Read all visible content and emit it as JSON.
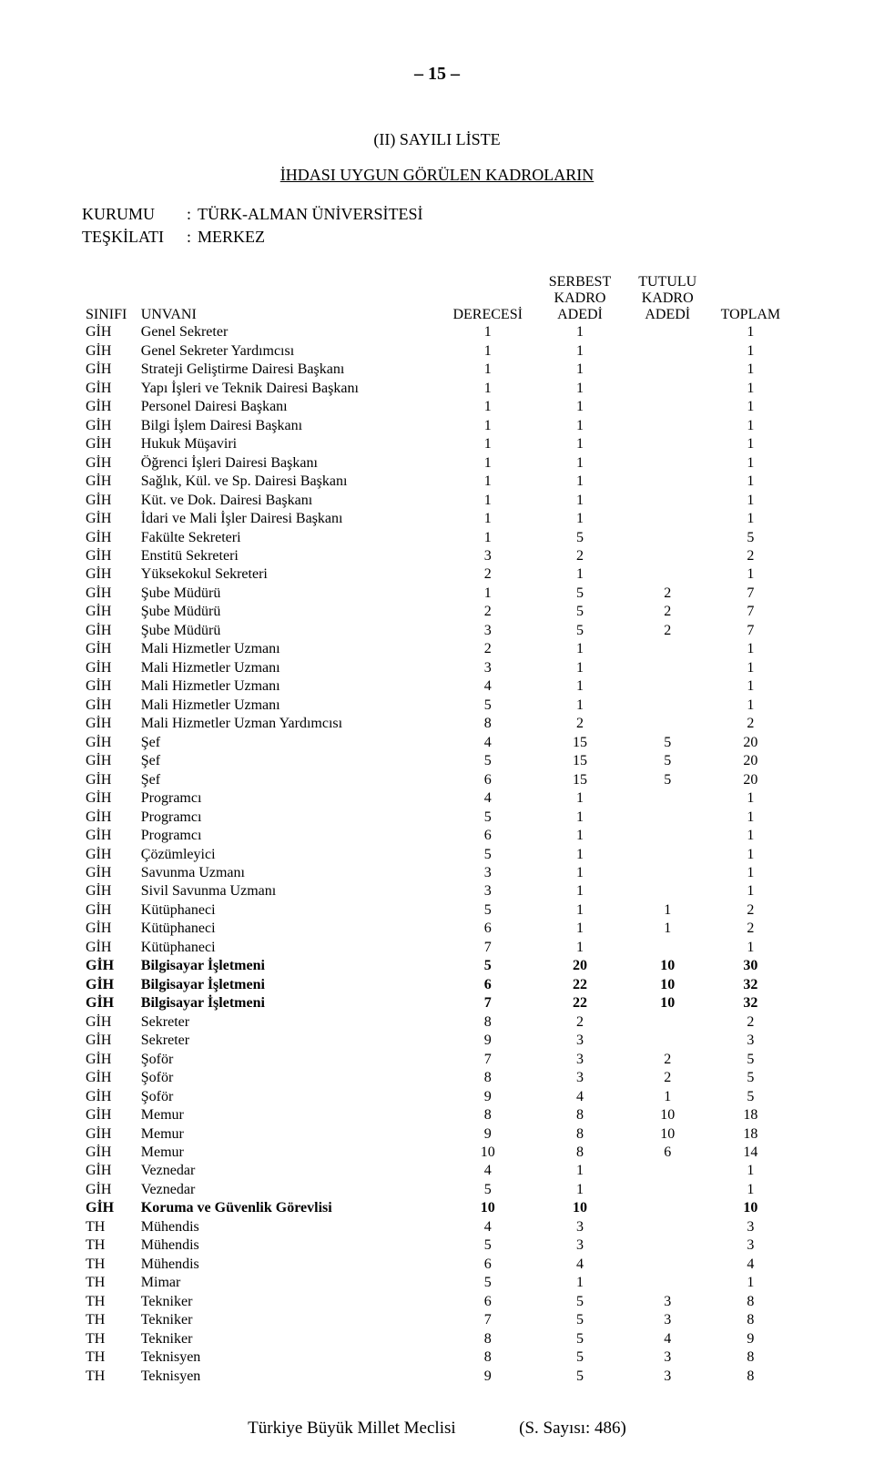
{
  "page_number": "– 15 –",
  "list_title": "(II) SAYILI LİSTE",
  "list_subtitle": "İHDASI UYGUN GÖRÜLEN KADROLARIN",
  "meta": {
    "kurumu_label": "KURUMU",
    "kurumu_value": "TÜRK-ALMAN ÜNİVERSİTESİ",
    "teskilati_label": "TEŞKİLATI",
    "teskilati_value": "MERKEZ"
  },
  "headers": {
    "sinifi": "SINIFI",
    "unvani": "UNVANI",
    "derecesi": "DERECESİ",
    "serbest1": "SERBEST",
    "serbest2": "KADRO",
    "serbest3": "ADEDİ",
    "tutulu1": "TUTULU",
    "tutulu2": "KADRO",
    "tutulu3": "ADEDİ",
    "toplam": "TOPLAM"
  },
  "rows": [
    {
      "s": "GİH",
      "u": "Genel Sekreter",
      "d": "1",
      "sb": "1",
      "t": "",
      "tp": "1",
      "b": false
    },
    {
      "s": "GİH",
      "u": "Genel Sekreter Yardımcısı",
      "d": "1",
      "sb": "1",
      "t": "",
      "tp": "1",
      "b": false
    },
    {
      "s": "GİH",
      "u": "Strateji Geliştirme Dairesi Başkanı",
      "d": "1",
      "sb": "1",
      "t": "",
      "tp": "1",
      "b": false
    },
    {
      "s": "GİH",
      "u": "Yapı İşleri ve Teknik Dairesi Başkanı",
      "d": "1",
      "sb": "1",
      "t": "",
      "tp": "1",
      "b": false
    },
    {
      "s": "GİH",
      "u": "Personel Dairesi Başkanı",
      "d": "1",
      "sb": "1",
      "t": "",
      "tp": "1",
      "b": false
    },
    {
      "s": "GİH",
      "u": "Bilgi İşlem Dairesi Başkanı",
      "d": "1",
      "sb": "1",
      "t": "",
      "tp": "1",
      "b": false
    },
    {
      "s": "GİH",
      "u": "Hukuk Müşaviri",
      "d": "1",
      "sb": "1",
      "t": "",
      "tp": "1",
      "b": false
    },
    {
      "s": "GİH",
      "u": "Öğrenci İşleri Dairesi Başkanı",
      "d": "1",
      "sb": "1",
      "t": "",
      "tp": "1",
      "b": false
    },
    {
      "s": "GİH",
      "u": "Sağlık, Kül. ve Sp. Dairesi Başkanı",
      "d": "1",
      "sb": "1",
      "t": "",
      "tp": "1",
      "b": false
    },
    {
      "s": "GİH",
      "u": "Küt. ve Dok. Dairesi Başkanı",
      "d": "1",
      "sb": "1",
      "t": "",
      "tp": "1",
      "b": false
    },
    {
      "s": "GİH",
      "u": "İdari ve Mali İşler Dairesi Başkanı",
      "d": "1",
      "sb": "1",
      "t": "",
      "tp": "1",
      "b": false
    },
    {
      "s": "GİH",
      "u": "Fakülte Sekreteri",
      "d": "1",
      "sb": "5",
      "t": "",
      "tp": "5",
      "b": false
    },
    {
      "s": "GİH",
      "u": "Enstitü Sekreteri",
      "d": "3",
      "sb": "2",
      "t": "",
      "tp": "2",
      "b": false
    },
    {
      "s": "GİH",
      "u": "Yüksekokul Sekreteri",
      "d": "2",
      "sb": "1",
      "t": "",
      "tp": "1",
      "b": false
    },
    {
      "s": "GİH",
      "u": "Şube Müdürü",
      "d": "1",
      "sb": "5",
      "t": "2",
      "tp": "7",
      "b": false
    },
    {
      "s": "GİH",
      "u": "Şube Müdürü",
      "d": "2",
      "sb": "5",
      "t": "2",
      "tp": "7",
      "b": false
    },
    {
      "s": "GİH",
      "u": "Şube Müdürü",
      "d": "3",
      "sb": "5",
      "t": "2",
      "tp": "7",
      "b": false
    },
    {
      "s": "GİH",
      "u": "Mali Hizmetler Uzmanı",
      "d": "2",
      "sb": "1",
      "t": "",
      "tp": "1",
      "b": false
    },
    {
      "s": "GİH",
      "u": "Mali Hizmetler Uzmanı",
      "d": "3",
      "sb": "1",
      "t": "",
      "tp": "1",
      "b": false
    },
    {
      "s": "GİH",
      "u": "Mali Hizmetler Uzmanı",
      "d": "4",
      "sb": "1",
      "t": "",
      "tp": "1",
      "b": false
    },
    {
      "s": "GİH",
      "u": "Mali Hizmetler Uzmanı",
      "d": "5",
      "sb": "1",
      "t": "",
      "tp": "1",
      "b": false
    },
    {
      "s": "GİH",
      "u": "Mali Hizmetler Uzman Yardımcısı",
      "d": "8",
      "sb": "2",
      "t": "",
      "tp": "2",
      "b": false
    },
    {
      "s": "GİH",
      "u": "Şef",
      "d": "4",
      "sb": "15",
      "t": "5",
      "tp": "20",
      "b": false
    },
    {
      "s": "GİH",
      "u": "Şef",
      "d": "5",
      "sb": "15",
      "t": "5",
      "tp": "20",
      "b": false
    },
    {
      "s": "GİH",
      "u": "Şef",
      "d": "6",
      "sb": "15",
      "t": "5",
      "tp": "20",
      "b": false
    },
    {
      "s": "GİH",
      "u": "Programcı",
      "d": "4",
      "sb": "1",
      "t": "",
      "tp": "1",
      "b": false
    },
    {
      "s": "GİH",
      "u": "Programcı",
      "d": "5",
      "sb": "1",
      "t": "",
      "tp": "1",
      "b": false
    },
    {
      "s": "GİH",
      "u": "Programcı",
      "d": "6",
      "sb": "1",
      "t": "",
      "tp": "1",
      "b": false
    },
    {
      "s": "GİH",
      "u": "Çözümleyici",
      "d": "5",
      "sb": "1",
      "t": "",
      "tp": "1",
      "b": false
    },
    {
      "s": "GİH",
      "u": "Savunma Uzmanı",
      "d": "3",
      "sb": "1",
      "t": "",
      "tp": "1",
      "b": false
    },
    {
      "s": "GİH",
      "u": "Sivil Savunma Uzmanı",
      "d": "3",
      "sb": "1",
      "t": "",
      "tp": "1",
      "b": false
    },
    {
      "s": "GİH",
      "u": "Kütüphaneci",
      "d": "5",
      "sb": "1",
      "t": "1",
      "tp": "2",
      "b": false
    },
    {
      "s": "GİH",
      "u": "Kütüphaneci",
      "d": "6",
      "sb": "1",
      "t": "1",
      "tp": "2",
      "b": false
    },
    {
      "s": "GİH",
      "u": "Kütüphaneci",
      "d": "7",
      "sb": "1",
      "t": "",
      "tp": "1",
      "b": false
    },
    {
      "s": "GİH",
      "u": "Bilgisayar İşletmeni",
      "d": "5",
      "sb": "20",
      "t": "10",
      "tp": "30",
      "b": true
    },
    {
      "s": "GİH",
      "u": "Bilgisayar İşletmeni",
      "d": "6",
      "sb": "22",
      "t": "10",
      "tp": "32",
      "b": true
    },
    {
      "s": "GİH",
      "u": "Bilgisayar İşletmeni",
      "d": "7",
      "sb": "22",
      "t": "10",
      "tp": "32",
      "b": true
    },
    {
      "s": "GİH",
      "u": "Sekreter",
      "d": "8",
      "sb": "2",
      "t": "",
      "tp": "2",
      "b": false
    },
    {
      "s": "GİH",
      "u": "Sekreter",
      "d": "9",
      "sb": "3",
      "t": "",
      "tp": "3",
      "b": false
    },
    {
      "s": "GİH",
      "u": "Şoför",
      "d": "7",
      "sb": "3",
      "t": "2",
      "tp": "5",
      "b": false
    },
    {
      "s": "GİH",
      "u": "Şoför",
      "d": "8",
      "sb": "3",
      "t": "2",
      "tp": "5",
      "b": false
    },
    {
      "s": "GİH",
      "u": "Şoför",
      "d": "9",
      "sb": "4",
      "t": "1",
      "tp": "5",
      "b": false
    },
    {
      "s": "GİH",
      "u": "Memur",
      "d": "8",
      "sb": "8",
      "t": "10",
      "tp": "18",
      "b": false
    },
    {
      "s": "GİH",
      "u": "Memur",
      "d": "9",
      "sb": "8",
      "t": "10",
      "tp": "18",
      "b": false
    },
    {
      "s": "GİH",
      "u": "Memur",
      "d": "10",
      "sb": "8",
      "t": "6",
      "tp": "14",
      "b": false
    },
    {
      "s": "GİH",
      "u": "Veznedar",
      "d": "4",
      "sb": "1",
      "t": "",
      "tp": "1",
      "b": false
    },
    {
      "s": "GİH",
      "u": "Veznedar",
      "d": "5",
      "sb": "1",
      "t": "",
      "tp": "1",
      "b": false
    },
    {
      "s": "GİH",
      "u": "Koruma ve Güvenlik Görevlisi",
      "d": "10",
      "sb": "10",
      "t": "",
      "tp": "10",
      "b": true
    },
    {
      "s": "TH",
      "u": "Mühendis",
      "d": "4",
      "sb": "3",
      "t": "",
      "tp": "3",
      "b": false
    },
    {
      "s": "TH",
      "u": "Mühendis",
      "d": "5",
      "sb": "3",
      "t": "",
      "tp": "3",
      "b": false
    },
    {
      "s": "TH",
      "u": "Mühendis",
      "d": "6",
      "sb": "4",
      "t": "",
      "tp": "4",
      "b": false
    },
    {
      "s": "TH",
      "u": "Mimar",
      "d": "5",
      "sb": "1",
      "t": "",
      "tp": "1",
      "b": false
    },
    {
      "s": "TH",
      "u": "Tekniker",
      "d": "6",
      "sb": "5",
      "t": "3",
      "tp": "8",
      "b": false
    },
    {
      "s": "TH",
      "u": "Tekniker",
      "d": "7",
      "sb": "5",
      "t": "3",
      "tp": "8",
      "b": false
    },
    {
      "s": "TH",
      "u": "Tekniker",
      "d": "8",
      "sb": "5",
      "t": "4",
      "tp": "9",
      "b": false
    },
    {
      "s": "TH",
      "u": "Teknisyen",
      "d": "8",
      "sb": "5",
      "t": "3",
      "tp": "8",
      "b": false
    },
    {
      "s": "TH",
      "u": "Teknisyen",
      "d": "9",
      "sb": "5",
      "t": "3",
      "tp": "8",
      "b": false
    }
  ],
  "footer": {
    "left": "Türkiye Büyük Millet Meclisi",
    "right": "(S. Sayısı: 486)"
  }
}
